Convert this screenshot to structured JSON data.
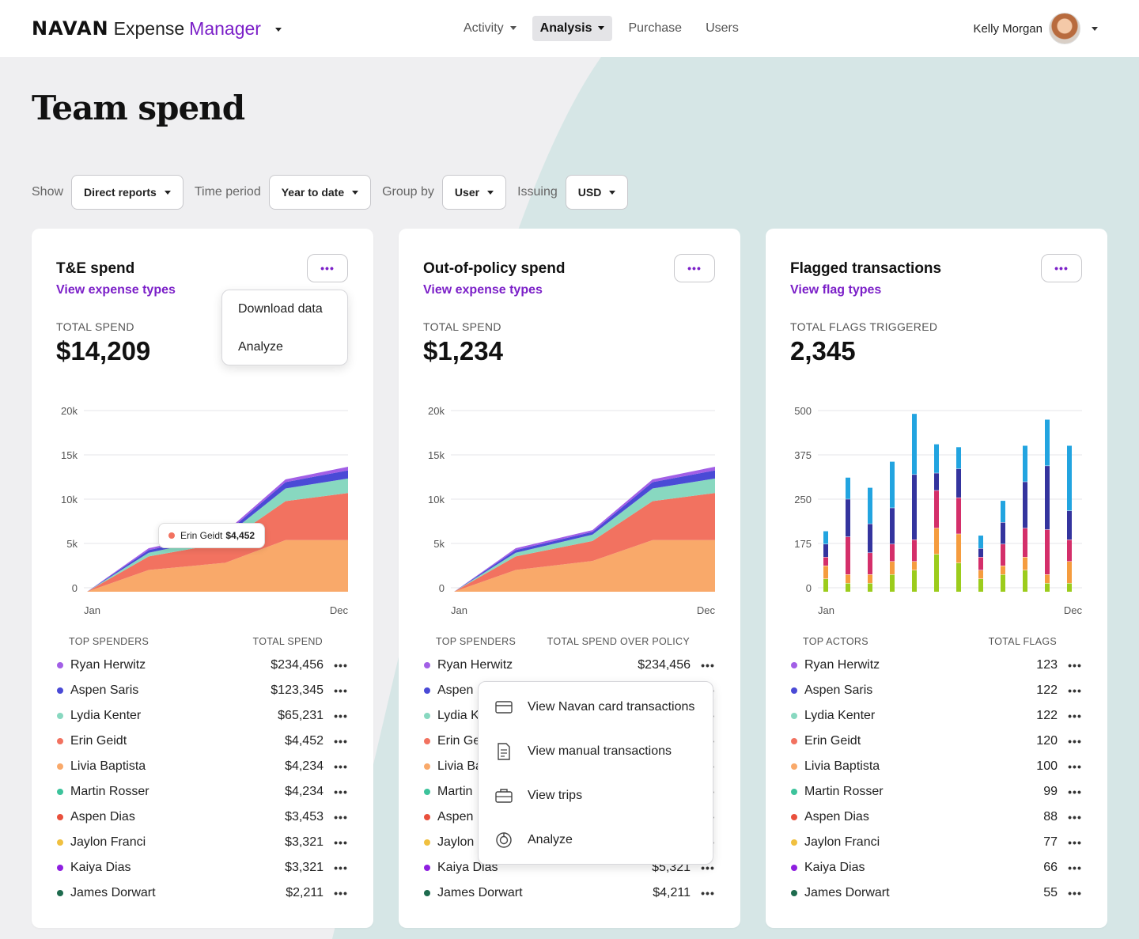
{
  "app": {
    "logo": "NAVAN",
    "name": "Expense",
    "product": "Manager"
  },
  "nav": {
    "items": [
      {
        "label": "Activity",
        "has_caret": true,
        "active": false
      },
      {
        "label": "Analysis",
        "has_caret": true,
        "active": true
      },
      {
        "label": "Purchase",
        "has_caret": false,
        "active": false
      },
      {
        "label": "Users",
        "has_caret": false,
        "active": false
      }
    ]
  },
  "user": {
    "name": "Kelly Morgan"
  },
  "page": {
    "title": "Team spend"
  },
  "filters": [
    {
      "label": "Show",
      "value": "Direct reports"
    },
    {
      "label": "Time period",
      "value": "Year to date"
    },
    {
      "label": "Group by",
      "value": "User"
    },
    {
      "label": "Issuing",
      "value": "USD"
    }
  ],
  "cards": [
    {
      "title": "T&E spend",
      "link": "View expense types",
      "stat_label": "TOTAL SPEND",
      "stat_value": "$14,209",
      "list_head_name": "TOP SPENDERS",
      "list_head_value": "TOTAL SPEND",
      "rows": [
        {
          "name": "Ryan Herwitz",
          "value": "$234,456"
        },
        {
          "name": "Aspen Saris",
          "value": "$123,345"
        },
        {
          "name": "Lydia Kenter",
          "value": "$65,231"
        },
        {
          "name": "Erin Geidt",
          "value": "$4,452"
        },
        {
          "name": "Livia Baptista",
          "value": "$4,234"
        },
        {
          "name": "Martin Rosser",
          "value": "$4,234"
        },
        {
          "name": "Aspen Dias",
          "value": "$3,453"
        },
        {
          "name": "Jaylon Franci",
          "value": "$3,321"
        },
        {
          "name": "Kaiya Dias",
          "value": "$3,321"
        },
        {
          "name": "James Dorwart",
          "value": "$2,211"
        }
      ]
    },
    {
      "title": "Out-of-policy spend",
      "link": "View expense types",
      "stat_label": "TOTAL SPEND",
      "stat_value": "$1,234",
      "list_head_name": "TOP SPENDERS",
      "list_head_value": "TOTAL SPEND OVER POLICY",
      "rows": [
        {
          "name": "Ryan Herwitz",
          "value": "$234,456"
        },
        {
          "name": "Aspen",
          "value": ""
        },
        {
          "name": "Lydia K",
          "value": ""
        },
        {
          "name": "Erin Ge",
          "value": ""
        },
        {
          "name": "Livia Ba",
          "value": ""
        },
        {
          "name": "Martin",
          "value": ""
        },
        {
          "name": "Aspen",
          "value": ""
        },
        {
          "name": "Jaylon",
          "value": ""
        },
        {
          "name": "Kaiya Dias",
          "value": "$5,321"
        },
        {
          "name": "James Dorwart",
          "value": "$4,211"
        }
      ]
    },
    {
      "title": "Flagged transactions",
      "link": "View flag types",
      "stat_label": "TOTAL FLAGS TRIGGERED",
      "stat_value": "2,345",
      "list_head_name": "TOP ACTORS",
      "list_head_value": "TOTAL FLAGS",
      "rows": [
        {
          "name": "Ryan Herwitz",
          "value": "123"
        },
        {
          "name": "Aspen Saris",
          "value": "122"
        },
        {
          "name": "Lydia Kenter",
          "value": "122"
        },
        {
          "name": "Erin Geidt",
          "value": "120"
        },
        {
          "name": "Livia Baptista",
          "value": "100"
        },
        {
          "name": "Martin Rosser",
          "value": "99"
        },
        {
          "name": "Aspen Dias",
          "value": "88"
        },
        {
          "name": "Jaylon Franci",
          "value": "77"
        },
        {
          "name": "Kaiya Dias",
          "value": "66"
        },
        {
          "name": "James Dorwart",
          "value": "55"
        }
      ]
    }
  ],
  "row_colors": [
    "#a25fe6",
    "#4a4ad6",
    "#88d8c0",
    "#f27260",
    "#f9a96a",
    "#3cc39b",
    "#e9503c",
    "#f0c040",
    "#8e1fe0",
    "#1e6b4e"
  ],
  "card_menu": {
    "items": [
      "Download data",
      "Analyze"
    ]
  },
  "row_menu": {
    "items": [
      {
        "label": "View Navan card transactions",
        "icon": "credit-card-icon"
      },
      {
        "label": "View manual transactions",
        "icon": "receipt-icon"
      },
      {
        "label": "View trips",
        "icon": "briefcase-icon"
      },
      {
        "label": "Analyze",
        "icon": "chart-ring-icon"
      }
    ]
  },
  "tooltip": {
    "name": "Erin Geidt",
    "value": "$4,452"
  },
  "chart_data": [
    {
      "type": "area",
      "stacked": true,
      "x_labels": [
        "Jan",
        "Dec"
      ],
      "x": [
        0,
        1,
        2,
        3,
        4
      ],
      "y_ticks": [
        "20k",
        "15k",
        "10k",
        "5k",
        "0"
      ],
      "ylim": [
        0,
        20000
      ],
      "series": [
        {
          "color": "#f9a96a",
          "values": [
            0,
            2400,
            3200,
            5700,
            5700
          ]
        },
        {
          "color": "#f27260",
          "values": [
            0,
            1500,
            2200,
            4300,
            5200
          ]
        },
        {
          "color": "#88d8c0",
          "values": [
            0,
            400,
            700,
            1400,
            1600
          ]
        },
        {
          "color": "#4a4ad6",
          "values": [
            0,
            300,
            300,
            700,
            900
          ]
        },
        {
          "color": "#a25fe6",
          "values": [
            0,
            200,
            200,
            300,
            400
          ]
        }
      ]
    },
    {
      "type": "area",
      "stacked": true,
      "x_labels": [
        "Jan",
        "Dec"
      ],
      "x": [
        0,
        1,
        2,
        3,
        4
      ],
      "y_ticks": [
        "20k",
        "15k",
        "10k",
        "5k",
        "0"
      ],
      "ylim": [
        0,
        20000
      ],
      "series": [
        {
          "color": "#f9a96a",
          "values": [
            0,
            2400,
            3400,
            5700,
            5700
          ]
        },
        {
          "color": "#f27260",
          "values": [
            0,
            1500,
            2200,
            4300,
            5200
          ]
        },
        {
          "color": "#88d8c0",
          "values": [
            0,
            400,
            700,
            1400,
            1600
          ]
        },
        {
          "color": "#4a4ad6",
          "values": [
            0,
            300,
            300,
            700,
            900
          ]
        },
        {
          "color": "#a25fe6",
          "values": [
            0,
            200,
            200,
            300,
            400
          ]
        }
      ]
    },
    {
      "type": "bar",
      "stacked": true,
      "x_labels": [
        "Jan",
        "Dec"
      ],
      "y_ticks": [
        "500",
        "375",
        "250",
        "175",
        "0"
      ],
      "ylim": [
        0,
        500
      ],
      "series": [
        {
          "color": "#9ccc1c",
          "values": [
            36,
            24,
            24,
            48,
            60,
            104,
            80,
            36,
            48,
            60,
            24,
            24
          ]
        },
        {
          "color": "#f59c3e",
          "values": [
            36,
            24,
            24,
            36,
            24,
            72,
            80,
            24,
            24,
            36,
            24,
            60
          ]
        },
        {
          "color": "#d42f6a",
          "values": [
            24,
            104,
            60,
            48,
            60,
            104,
            100,
            36,
            60,
            80,
            124,
            60
          ]
        },
        {
          "color": "#34349e",
          "values": [
            36,
            104,
            80,
            100,
            180,
            48,
            80,
            24,
            60,
            128,
            176,
            80
          ]
        },
        {
          "color": "#22a4e0",
          "values": [
            36,
            60,
            100,
            128,
            168,
            80,
            60,
            36,
            60,
            100,
            128,
            180
          ]
        }
      ]
    }
  ]
}
